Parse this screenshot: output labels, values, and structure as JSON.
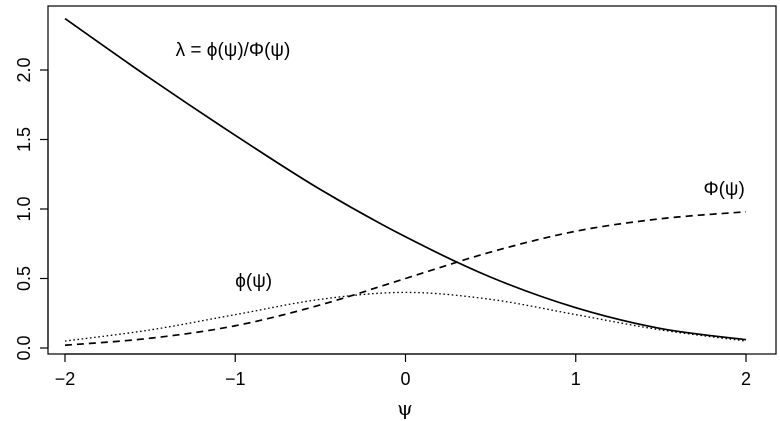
{
  "chart_data": {
    "type": "line",
    "title": "",
    "xlabel": "ψ",
    "ylabel": "",
    "xlim": [
      -2,
      2
    ],
    "ylim": [
      0,
      2.4
    ],
    "grid": false,
    "x_ticks": [
      {
        "value": -2,
        "label": "−2"
      },
      {
        "value": -1,
        "label": "−1"
      },
      {
        "value": 0,
        "label": "0"
      },
      {
        "value": 1,
        "label": "1"
      },
      {
        "value": 2,
        "label": "2"
      }
    ],
    "y_ticks": [
      {
        "value": 0.0,
        "label": "0.0"
      },
      {
        "value": 0.5,
        "label": "0.5"
      },
      {
        "value": 1.0,
        "label": "1.0"
      },
      {
        "value": 1.5,
        "label": "1.5"
      },
      {
        "value": 2.0,
        "label": "2.0"
      }
    ],
    "x": [
      -2.0,
      -1.5,
      -1.0,
      -0.5,
      0.0,
      0.5,
      1.0,
      1.5,
      2.0
    ],
    "series": [
      {
        "values": [
          2.37,
          1.94,
          1.53,
          1.14,
          0.8,
          0.51,
          0.29,
          0.14,
          0.06
        ],
        "line_style": "solid"
      },
      {
        "values": [
          0.02,
          0.07,
          0.16,
          0.31,
          0.5,
          0.69,
          0.84,
          0.93,
          0.98
        ],
        "line_style": "dashed"
      },
      {
        "values": [
          0.05,
          0.13,
          0.24,
          0.35,
          0.4,
          0.35,
          0.24,
          0.13,
          0.05
        ],
        "line_style": "dotted"
      }
    ],
    "annotations": [
      {
        "text": "λ = ϕ(ψ)/Φ(ψ)",
        "x": -1.35,
        "y": 2.1
      },
      {
        "text": "Φ(ψ)",
        "x": 1.75,
        "y": 1.1
      },
      {
        "text": "ϕ(ψ)",
        "x": -1.0,
        "y": 0.44
      }
    ]
  }
}
